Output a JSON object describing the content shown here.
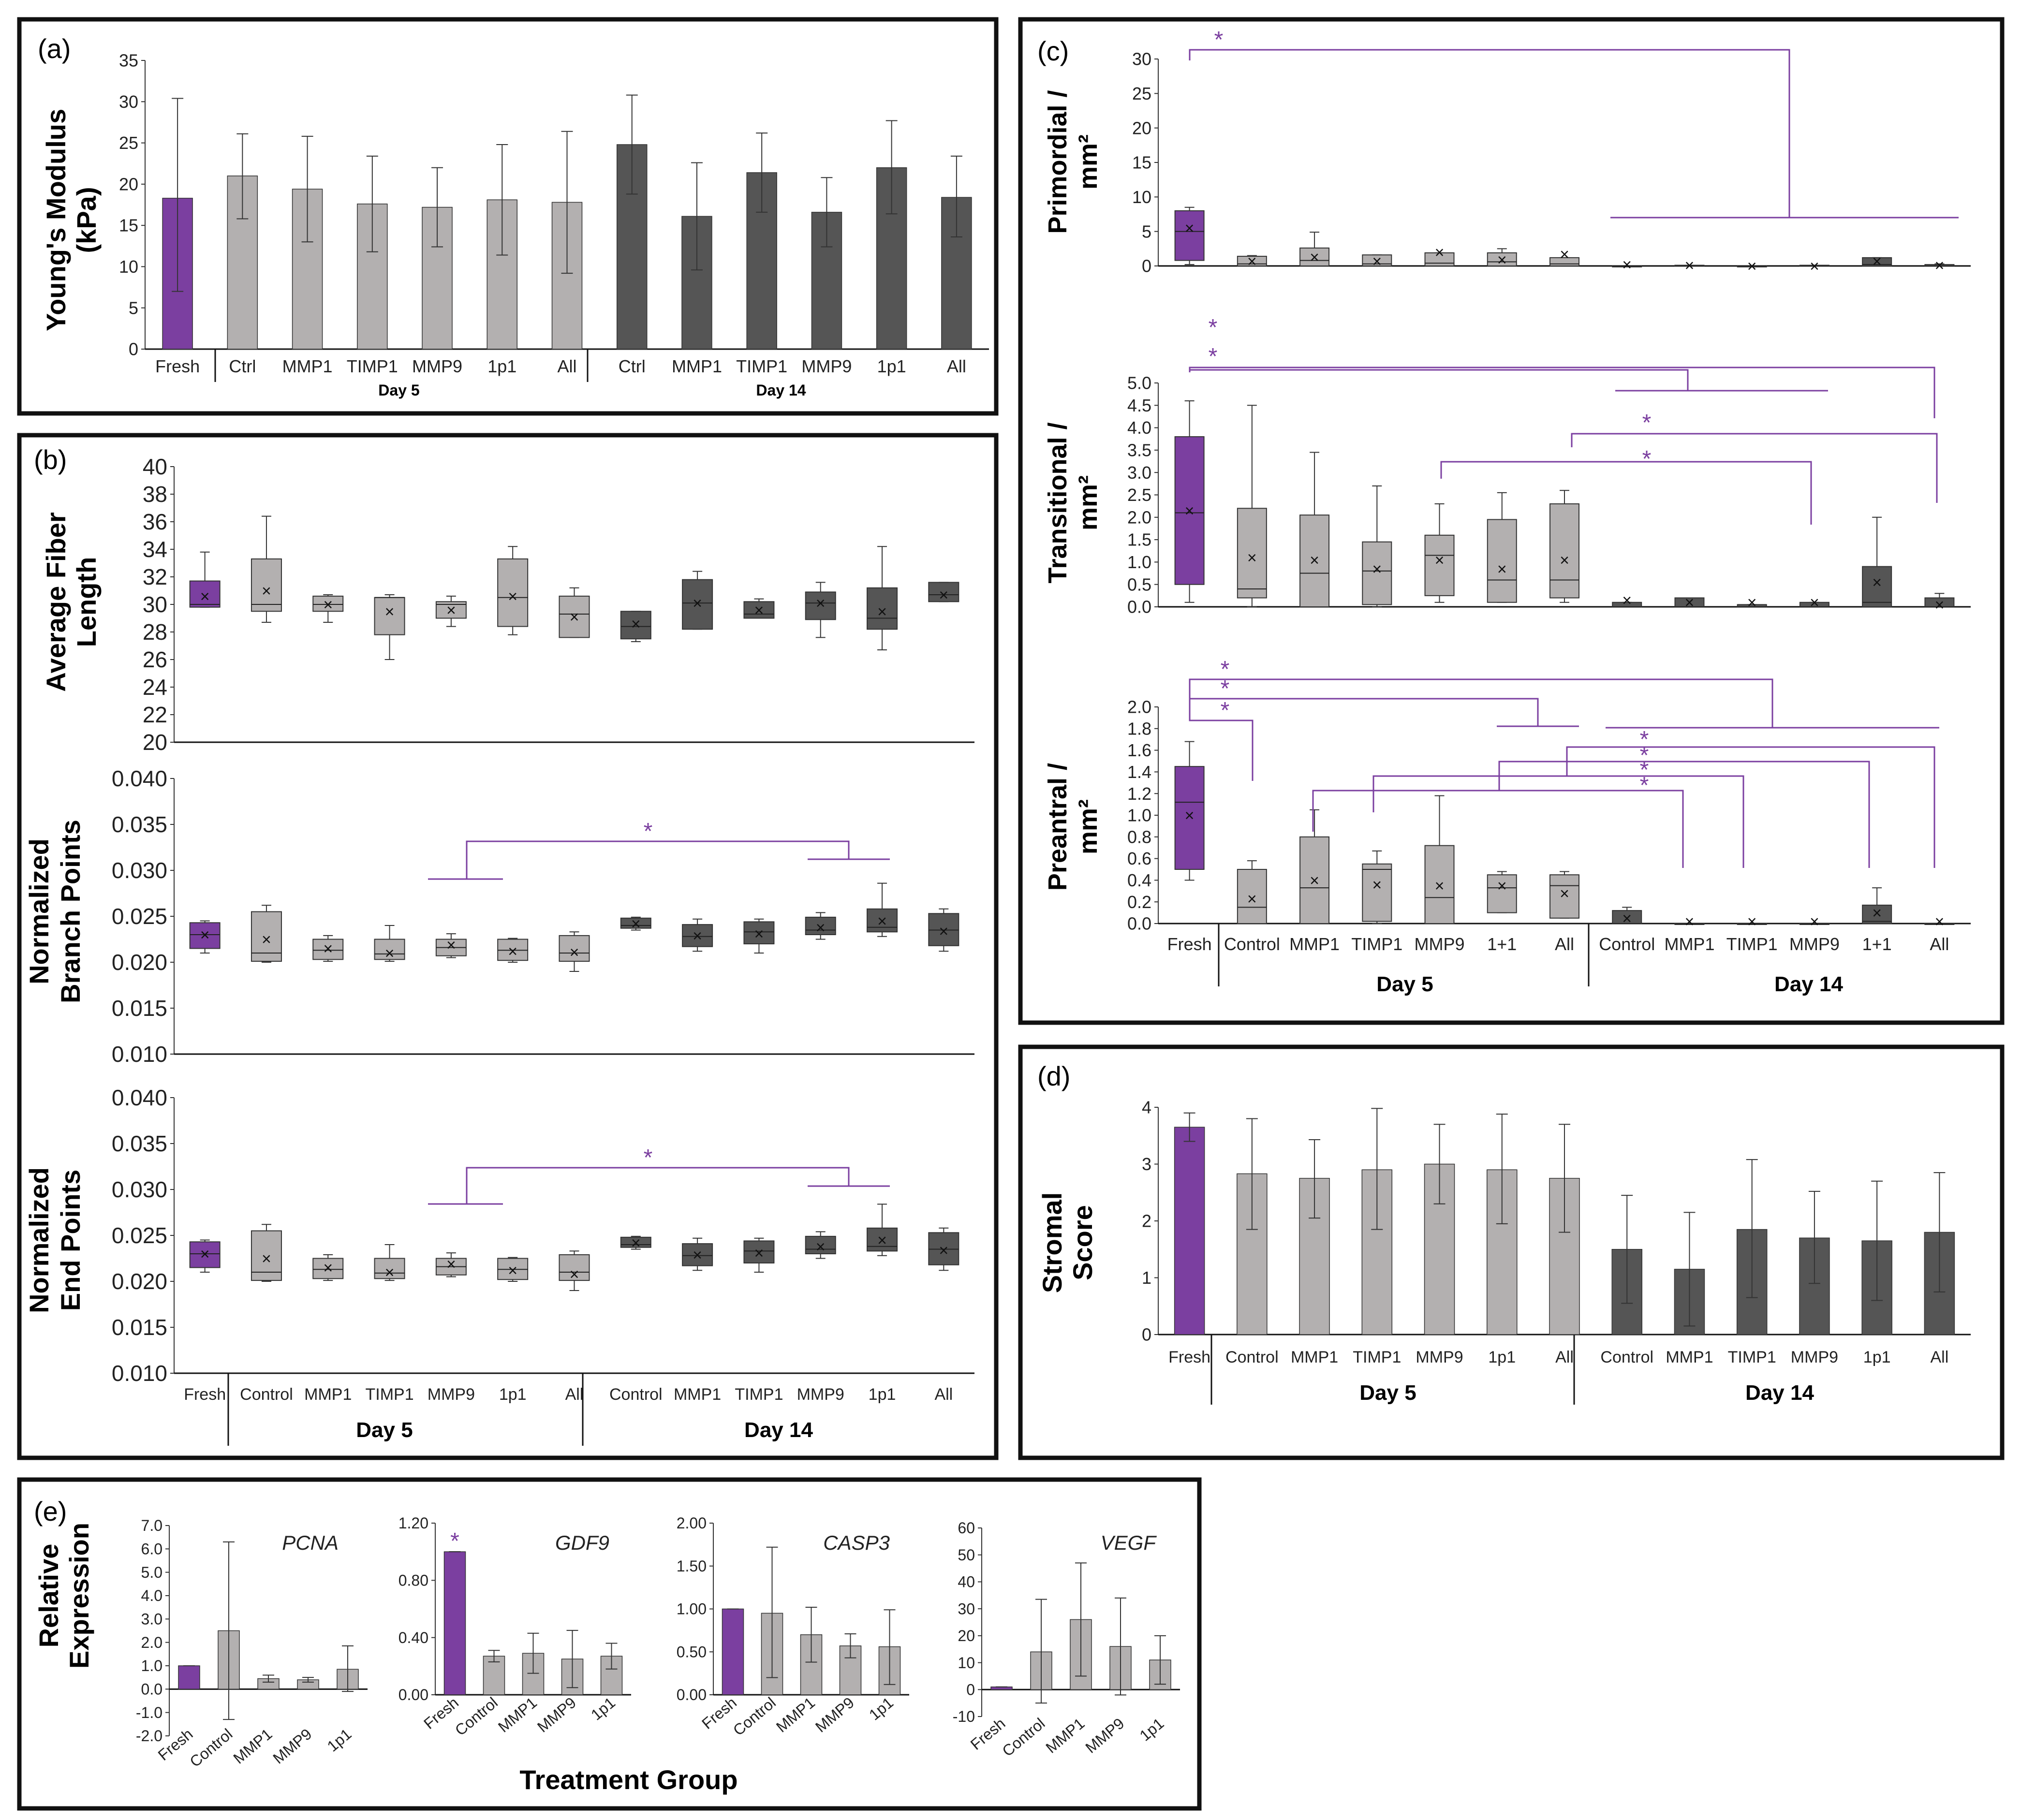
{
  "colors": {
    "fresh": "#7b3fa0",
    "day5": "#b3b0b0",
    "day14": "#555555",
    "sig": "#7b3fa0",
    "frame": "#111111"
  },
  "panels": {
    "a": {
      "label": "(a)",
      "ylabel": [
        "Young's Modulus",
        "(kPa)"
      ],
      "day5": "Day 5",
      "day14": "Day 14"
    },
    "b": {
      "label": "(b)",
      "day5": "Day 5",
      "day14": "Day 14"
    },
    "c": {
      "label": "(c)",
      "day5": "Day 5",
      "day14": "Day 14"
    },
    "d": {
      "label": "(d)",
      "ylabel": [
        "Stromal",
        "Score"
      ],
      "day5": "Day 5",
      "day14": "Day 14"
    },
    "e": {
      "label": "(e)",
      "ylabel": [
        "Relative",
        "Expression"
      ],
      "xlabel": "Treatment Group"
    }
  },
  "chart_data": [
    {
      "id": "a",
      "type": "bar",
      "title": "Young's Modulus",
      "ylabel": "Young's Modulus (kPa)",
      "ylim": [
        0,
        35
      ],
      "yticks": [
        "0",
        "5",
        "10",
        "15",
        "20",
        "25",
        "30",
        "35"
      ],
      "categories": [
        "Fresh",
        "Ctrl",
        "MMP1",
        "TIMP1",
        "MMP9",
        "1p1",
        "All",
        "Ctrl",
        "MMP1",
        "TIMP1",
        "MMP9",
        "1p1",
        "All"
      ],
      "groups": [
        "fresh",
        "day5",
        "day5",
        "day5",
        "day5",
        "day5",
        "day5",
        "day14",
        "day14",
        "day14",
        "day14",
        "day14",
        "day14"
      ],
      "values": [
        18.3,
        21.0,
        19.4,
        17.6,
        17.2,
        18.1,
        17.8,
        24.8,
        16.1,
        21.4,
        16.6,
        22.0,
        18.4
      ],
      "err_low": [
        7.0,
        15.8,
        13.0,
        11.8,
        12.4,
        11.4,
        9.2,
        18.8,
        9.6,
        16.6,
        12.4,
        16.4,
        13.6
      ],
      "err_high": [
        30.4,
        26.1,
        25.8,
        23.4,
        22.0,
        24.8,
        26.4,
        30.8,
        22.6,
        26.2,
        20.8,
        27.7,
        23.4
      ]
    },
    {
      "id": "b1",
      "type": "box",
      "ylabel": "Average Fiber Length",
      "ylim": [
        20,
        40
      ],
      "yticks": [
        "20",
        "22",
        "24",
        "26",
        "28",
        "30",
        "32",
        "34",
        "36",
        "38",
        "40"
      ],
      "categories": [
        "Fresh",
        "Control",
        "MMP1",
        "TIMP1",
        "MMP9",
        "1p1",
        "All",
        "Control",
        "MMP1",
        "TIMP1",
        "MMP9",
        "1p1",
        "All"
      ],
      "groups": [
        "fresh",
        "day5",
        "day5",
        "day5",
        "day5",
        "day5",
        "day5",
        "day14",
        "day14",
        "day14",
        "day14",
        "day14",
        "day14"
      ],
      "min": [
        29.8,
        28.7,
        28.7,
        26.0,
        28.4,
        27.8,
        27.6,
        27.3,
        28.2,
        29.0,
        27.6,
        26.7,
        30.2
      ],
      "q1": [
        29.8,
        29.5,
        29.5,
        27.8,
        29.0,
        28.4,
        27.6,
        27.5,
        28.2,
        29.0,
        28.9,
        28.2,
        30.2
      ],
      "median": [
        30.0,
        30.0,
        30.0,
        30.5,
        30.0,
        30.5,
        29.3,
        28.4,
        30.1,
        29.3,
        30.1,
        29.0,
        30.7
      ],
      "q3": [
        31.7,
        33.3,
        30.6,
        30.5,
        30.2,
        33.3,
        30.6,
        29.5,
        31.8,
        30.2,
        30.9,
        31.2,
        31.6
      ],
      "max": [
        33.8,
        36.4,
        30.7,
        30.7,
        30.6,
        34.2,
        31.2,
        29.5,
        32.4,
        30.4,
        31.6,
        34.2,
        31.6
      ],
      "mean": [
        30.6,
        31.0,
        30.0,
        29.5,
        29.6,
        30.6,
        29.1,
        28.6,
        30.1,
        29.6,
        30.1,
        29.5,
        30.7
      ]
    },
    {
      "id": "b2",
      "type": "box",
      "ylabel": "Normalized Branch Points",
      "ylim": [
        0.01,
        0.04
      ],
      "yticks": [
        "0.010",
        "0.015",
        "0.020",
        "0.025",
        "0.030",
        "0.035",
        "0.040"
      ],
      "categories": [
        "Fresh",
        "Control",
        "MMP1",
        "TIMP1",
        "MMP9",
        "1p1",
        "All",
        "Control",
        "MMP1",
        "TIMP1",
        "MMP9",
        "1p1",
        "All"
      ],
      "groups": [
        "fresh",
        "day5",
        "day5",
        "day5",
        "day5",
        "day5",
        "day5",
        "day14",
        "day14",
        "day14",
        "day14",
        "day14",
        "day14"
      ],
      "min": [
        0.021,
        0.02,
        0.0201,
        0.0201,
        0.0205,
        0.02,
        0.019,
        0.0235,
        0.0212,
        0.021,
        0.0225,
        0.0228,
        0.0212
      ],
      "q1": [
        0.0215,
        0.0201,
        0.0203,
        0.0203,
        0.0207,
        0.0202,
        0.0201,
        0.0237,
        0.0217,
        0.022,
        0.023,
        0.0233,
        0.0218
      ],
      "median": [
        0.023,
        0.021,
        0.0213,
        0.0209,
        0.0216,
        0.0213,
        0.021,
        0.024,
        0.0228,
        0.0233,
        0.0235,
        0.0238,
        0.0235
      ],
      "q3": [
        0.0243,
        0.0255,
        0.0225,
        0.0225,
        0.0225,
        0.0225,
        0.0229,
        0.0248,
        0.0241,
        0.0244,
        0.0249,
        0.0258,
        0.0253
      ],
      "max": [
        0.0245,
        0.0262,
        0.0229,
        0.024,
        0.0231,
        0.0226,
        0.0233,
        0.0249,
        0.0247,
        0.0247,
        0.0254,
        0.0286,
        0.0258
      ],
      "mean": [
        0.023,
        0.0225,
        0.0215,
        0.021,
        0.0219,
        0.0212,
        0.0211,
        0.0242,
        0.0229,
        0.0231,
        0.0238,
        0.0245,
        0.0234
      ],
      "sig": "*"
    },
    {
      "id": "b3",
      "type": "box",
      "ylabel": "Normalized End Points",
      "ylim": [
        0.01,
        0.04
      ],
      "yticks": [
        "0.010",
        "0.015",
        "0.020",
        "0.025",
        "0.030",
        "0.035",
        "0.040"
      ],
      "categories": [
        "Fresh",
        "Control",
        "MMP1",
        "TIMP1",
        "MMP9",
        "1p1",
        "All",
        "Control",
        "MMP1",
        "TIMP1",
        "MMP9",
        "1p1",
        "All"
      ],
      "groups": [
        "fresh",
        "day5",
        "day5",
        "day5",
        "day5",
        "day5",
        "day5",
        "day14",
        "day14",
        "day14",
        "day14",
        "day14",
        "day14"
      ],
      "min": [
        0.021,
        0.02,
        0.0201,
        0.0201,
        0.0205,
        0.02,
        0.019,
        0.0235,
        0.0212,
        0.021,
        0.0225,
        0.0228,
        0.0212
      ],
      "q1": [
        0.0215,
        0.0201,
        0.0203,
        0.0203,
        0.0207,
        0.0202,
        0.0201,
        0.0237,
        0.0217,
        0.022,
        0.023,
        0.0233,
        0.0218
      ],
      "median": [
        0.023,
        0.021,
        0.0213,
        0.0209,
        0.0216,
        0.0213,
        0.021,
        0.024,
        0.0228,
        0.0233,
        0.0235,
        0.0238,
        0.0235
      ],
      "q3": [
        0.0243,
        0.0255,
        0.0225,
        0.0225,
        0.0225,
        0.0225,
        0.0229,
        0.0248,
        0.0241,
        0.0244,
        0.0249,
        0.0258,
        0.0253
      ],
      "max": [
        0.0245,
        0.0262,
        0.0229,
        0.024,
        0.0231,
        0.0226,
        0.0233,
        0.0249,
        0.0247,
        0.0247,
        0.0254,
        0.0284,
        0.0258
      ],
      "mean": [
        0.023,
        0.0225,
        0.0215,
        0.021,
        0.0219,
        0.0212,
        0.0208,
        0.0242,
        0.0229,
        0.0231,
        0.0238,
        0.0245,
        0.0234
      ],
      "sig": "*"
    },
    {
      "id": "c1",
      "type": "box",
      "ylabel": "Primordial / mm²",
      "ylim": [
        0,
        30
      ],
      "yticks": [
        "0",
        "5",
        "10",
        "15",
        "20",
        "25",
        "30"
      ],
      "categories": [
        "Fresh",
        "Control",
        "MMP1",
        "TIMP1",
        "MMP9",
        "1+1",
        "All",
        "Control",
        "MMP1",
        "TIMP1",
        "MMP9",
        "1+1",
        "All"
      ],
      "groups": [
        "fresh",
        "day5",
        "day5",
        "day5",
        "day5",
        "day5",
        "day5",
        "day14",
        "day14",
        "day14",
        "day14",
        "day14",
        "day14"
      ],
      "min": [
        0.2,
        0.0,
        0.0,
        0.0,
        0.0,
        0.0,
        0.0,
        0.0,
        0.0,
        0.0,
        0.0,
        0.0,
        0.0
      ],
      "q1": [
        0.8,
        0.0,
        0.0,
        0.0,
        0.0,
        0.0,
        0.0,
        0.0,
        0.0,
        0.0,
        0.0,
        0.0,
        0.0
      ],
      "median": [
        5.0,
        0.3,
        0.8,
        0.3,
        0.4,
        0.6,
        0.3,
        0.0,
        0.0,
        0.0,
        0.0,
        0.2,
        0.0
      ],
      "q3": [
        8.0,
        1.4,
        2.6,
        1.6,
        1.9,
        1.9,
        1.2,
        0.0,
        0.1,
        0.0,
        0.1,
        1.2,
        0.2
      ],
      "max": [
        8.5,
        1.5,
        4.9,
        1.6,
        1.9,
        2.5,
        1.2,
        0.0,
        0.1,
        0.0,
        0.1,
        1.2,
        0.3
      ],
      "mean": [
        5.5,
        0.7,
        1.3,
        0.7,
        2.0,
        0.9,
        1.7,
        0.2,
        0.1,
        0.0,
        0.0,
        0.7,
        0.1
      ],
      "sig": "*"
    },
    {
      "id": "c2",
      "type": "box",
      "ylabel": "Transitional / mm²",
      "ylim": [
        0,
        5
      ],
      "yticks": [
        "0.0",
        "0.5",
        "1.0",
        "1.5",
        "2.0",
        "2.5",
        "3.0",
        "3.5",
        "4.0",
        "4.5",
        "5.0"
      ],
      "categories": [
        "Fresh",
        "Control",
        "MMP1",
        "TIMP1",
        "MMP9",
        "1+1",
        "All",
        "Control",
        "MMP1",
        "TIMP1",
        "MMP9",
        "1+1",
        "All"
      ],
      "groups": [
        "fresh",
        "day5",
        "day5",
        "day5",
        "day5",
        "day5",
        "day5",
        "day14",
        "day14",
        "day14",
        "day14",
        "day14",
        "day14"
      ],
      "min": [
        0.1,
        0.0,
        0.0,
        0.0,
        0.1,
        0.1,
        0.1,
        0.0,
        0.0,
        0.0,
        0.0,
        0.0,
        0.0
      ],
      "q1": [
        0.5,
        0.2,
        0.0,
        0.05,
        0.25,
        0.1,
        0.2,
        0.0,
        0.0,
        0.0,
        0.0,
        0.0,
        0.0
      ],
      "median": [
        2.1,
        0.4,
        0.75,
        0.8,
        1.15,
        0.6,
        0.6,
        0.0,
        0.0,
        0.0,
        0.0,
        0.1,
        0.0
      ],
      "q3": [
        3.8,
        2.2,
        2.05,
        1.45,
        1.6,
        1.95,
        2.3,
        0.1,
        0.2,
        0.05,
        0.1,
        0.9,
        0.2
      ],
      "max": [
        4.6,
        4.5,
        3.45,
        2.7,
        2.3,
        2.55,
        2.6,
        0.1,
        0.2,
        0.05,
        0.1,
        2.0,
        0.3
      ],
      "mean": [
        2.15,
        1.1,
        1.05,
        0.85,
        1.05,
        0.85,
        1.05,
        0.15,
        0.1,
        0.1,
        0.1,
        0.55,
        0.05
      ],
      "sig": "*"
    },
    {
      "id": "c3",
      "type": "box",
      "ylabel": "Preantral / mm²",
      "ylim": [
        0,
        2
      ],
      "yticks": [
        "0.0",
        "0.2",
        "0.4",
        "0.6",
        "0.8",
        "1.0",
        "1.2",
        "1.4",
        "1.6",
        "1.8",
        "2.0"
      ],
      "categories": [
        "Fresh",
        "Control",
        "MMP1",
        "TIMP1",
        "MMP9",
        "1+1",
        "All",
        "Control",
        "MMP1",
        "TIMP1",
        "MMP9",
        "1+1",
        "All"
      ],
      "groups": [
        "fresh",
        "day5",
        "day5",
        "day5",
        "day5",
        "day5",
        "day5",
        "day14",
        "day14",
        "day14",
        "day14",
        "day14",
        "day14"
      ],
      "min": [
        0.4,
        0.0,
        0.0,
        0.0,
        0.0,
        0.1,
        0.05,
        0.0,
        0.0,
        0.0,
        0.0,
        0.0,
        0.0
      ],
      "q1": [
        0.5,
        0.0,
        0.0,
        0.02,
        0.0,
        0.1,
        0.05,
        0.0,
        0.0,
        0.0,
        0.0,
        0.0,
        0.0
      ],
      "median": [
        1.12,
        0.15,
        0.33,
        0.5,
        0.24,
        0.33,
        0.35,
        0.0,
        0.0,
        0.0,
        0.0,
        0.02,
        0.0
      ],
      "q3": [
        1.45,
        0.5,
        0.8,
        0.55,
        0.72,
        0.45,
        0.45,
        0.12,
        0.0,
        0.0,
        0.0,
        0.17,
        0.0
      ],
      "max": [
        1.68,
        0.58,
        1.05,
        0.67,
        1.18,
        0.48,
        0.48,
        0.15,
        0.0,
        0.0,
        0.0,
        0.33,
        0.0
      ],
      "mean": [
        1.0,
        0.23,
        0.4,
        0.36,
        0.35,
        0.35,
        0.28,
        0.05,
        0.02,
        0.02,
        0.02,
        0.1,
        0.02
      ],
      "sig": "*"
    },
    {
      "id": "d",
      "type": "bar",
      "ylabel": "Stromal Score",
      "ylim": [
        0,
        4
      ],
      "yticks": [
        "0",
        "1",
        "2",
        "3",
        "4"
      ],
      "categories": [
        "Fresh",
        "Control",
        "MMP1",
        "TIMP1",
        "MMP9",
        "1p1",
        "All",
        "Control",
        "MMP1",
        "TIMP1",
        "MMP9",
        "1p1",
        "All"
      ],
      "groups": [
        "fresh",
        "day5",
        "day5",
        "day5",
        "day5",
        "day5",
        "day5",
        "day14",
        "day14",
        "day14",
        "day14",
        "day14",
        "day14"
      ],
      "values": [
        3.65,
        2.83,
        2.75,
        2.9,
        3.0,
        2.9,
        2.75,
        1.5,
        1.15,
        1.85,
        1.7,
        1.65,
        1.8
      ],
      "err_low": [
        3.4,
        1.85,
        2.05,
        1.85,
        2.3,
        1.95,
        1.8,
        0.55,
        0.15,
        0.65,
        0.9,
        0.6,
        0.75
      ],
      "err_high": [
        3.9,
        3.8,
        3.43,
        3.98,
        3.7,
        3.88,
        3.7,
        2.45,
        2.15,
        3.08,
        2.52,
        2.7,
        2.85
      ]
    },
    {
      "id": "e1",
      "type": "bar",
      "title": "PCNA",
      "ylim": [
        -2,
        7
      ],
      "yticks": [
        "-2.0",
        "-1.0",
        "0.0",
        "1.0",
        "2.0",
        "3.0",
        "4.0",
        "5.0",
        "6.0",
        "7.0"
      ],
      "categories": [
        "Fresh",
        "Control",
        "MMP1",
        "MMP9",
        "1p1"
      ],
      "groups": [
        "fresh",
        "day5",
        "day5",
        "day5",
        "day5"
      ],
      "values": [
        1.0,
        2.5,
        0.45,
        0.4,
        0.85
      ],
      "err_low": [
        1.0,
        -1.3,
        0.3,
        0.3,
        -0.1
      ],
      "err_high": [
        1.0,
        6.3,
        0.6,
        0.5,
        1.85
      ]
    },
    {
      "id": "e2",
      "type": "bar",
      "title": "GDF9",
      "ylim": [
        0,
        1.2
      ],
      "yticks": [
        "0.00",
        "0.40",
        "0.80",
        "1.20"
      ],
      "categories": [
        "Fresh",
        "Control",
        "MMP1",
        "MMP9",
        "1p1"
      ],
      "groups": [
        "fresh",
        "day5",
        "day5",
        "day5",
        "day5"
      ],
      "values": [
        1.0,
        0.27,
        0.29,
        0.25,
        0.27
      ],
      "err_low": [
        1.0,
        0.23,
        0.15,
        0.05,
        0.18
      ],
      "err_high": [
        1.0,
        0.31,
        0.43,
        0.45,
        0.36
      ],
      "sig": "*"
    },
    {
      "id": "e3",
      "type": "bar",
      "title": "CASP3",
      "ylim": [
        0,
        2
      ],
      "yticks": [
        "0.00",
        "0.50",
        "1.00",
        "1.50",
        "2.00"
      ],
      "categories": [
        "Fresh",
        "Control",
        "MMP1",
        "MMP9",
        "1p1"
      ],
      "groups": [
        "fresh",
        "day5",
        "day5",
        "day5",
        "day5"
      ],
      "values": [
        1.0,
        0.95,
        0.7,
        0.57,
        0.56
      ],
      "err_low": [
        1.0,
        0.2,
        0.38,
        0.43,
        0.12
      ],
      "err_high": [
        1.0,
        1.72,
        1.02,
        0.71,
        0.99
      ]
    },
    {
      "id": "e4",
      "type": "bar",
      "title": "VEGF",
      "ylim": [
        -10,
        60
      ],
      "yticks": [
        "-10",
        "0",
        "10",
        "20",
        "30",
        "40",
        "50",
        "60"
      ],
      "categories": [
        "Fresh",
        "Control",
        "MMP1",
        "MMP9",
        "1p1"
      ],
      "groups": [
        "fresh",
        "day5",
        "day5",
        "day5",
        "day5"
      ],
      "values": [
        1.0,
        14,
        26,
        16,
        11
      ],
      "err_low": [
        1.0,
        -5,
        5,
        -2,
        2
      ],
      "err_high": [
        1.0,
        33.5,
        47,
        34,
        20
      ]
    }
  ]
}
